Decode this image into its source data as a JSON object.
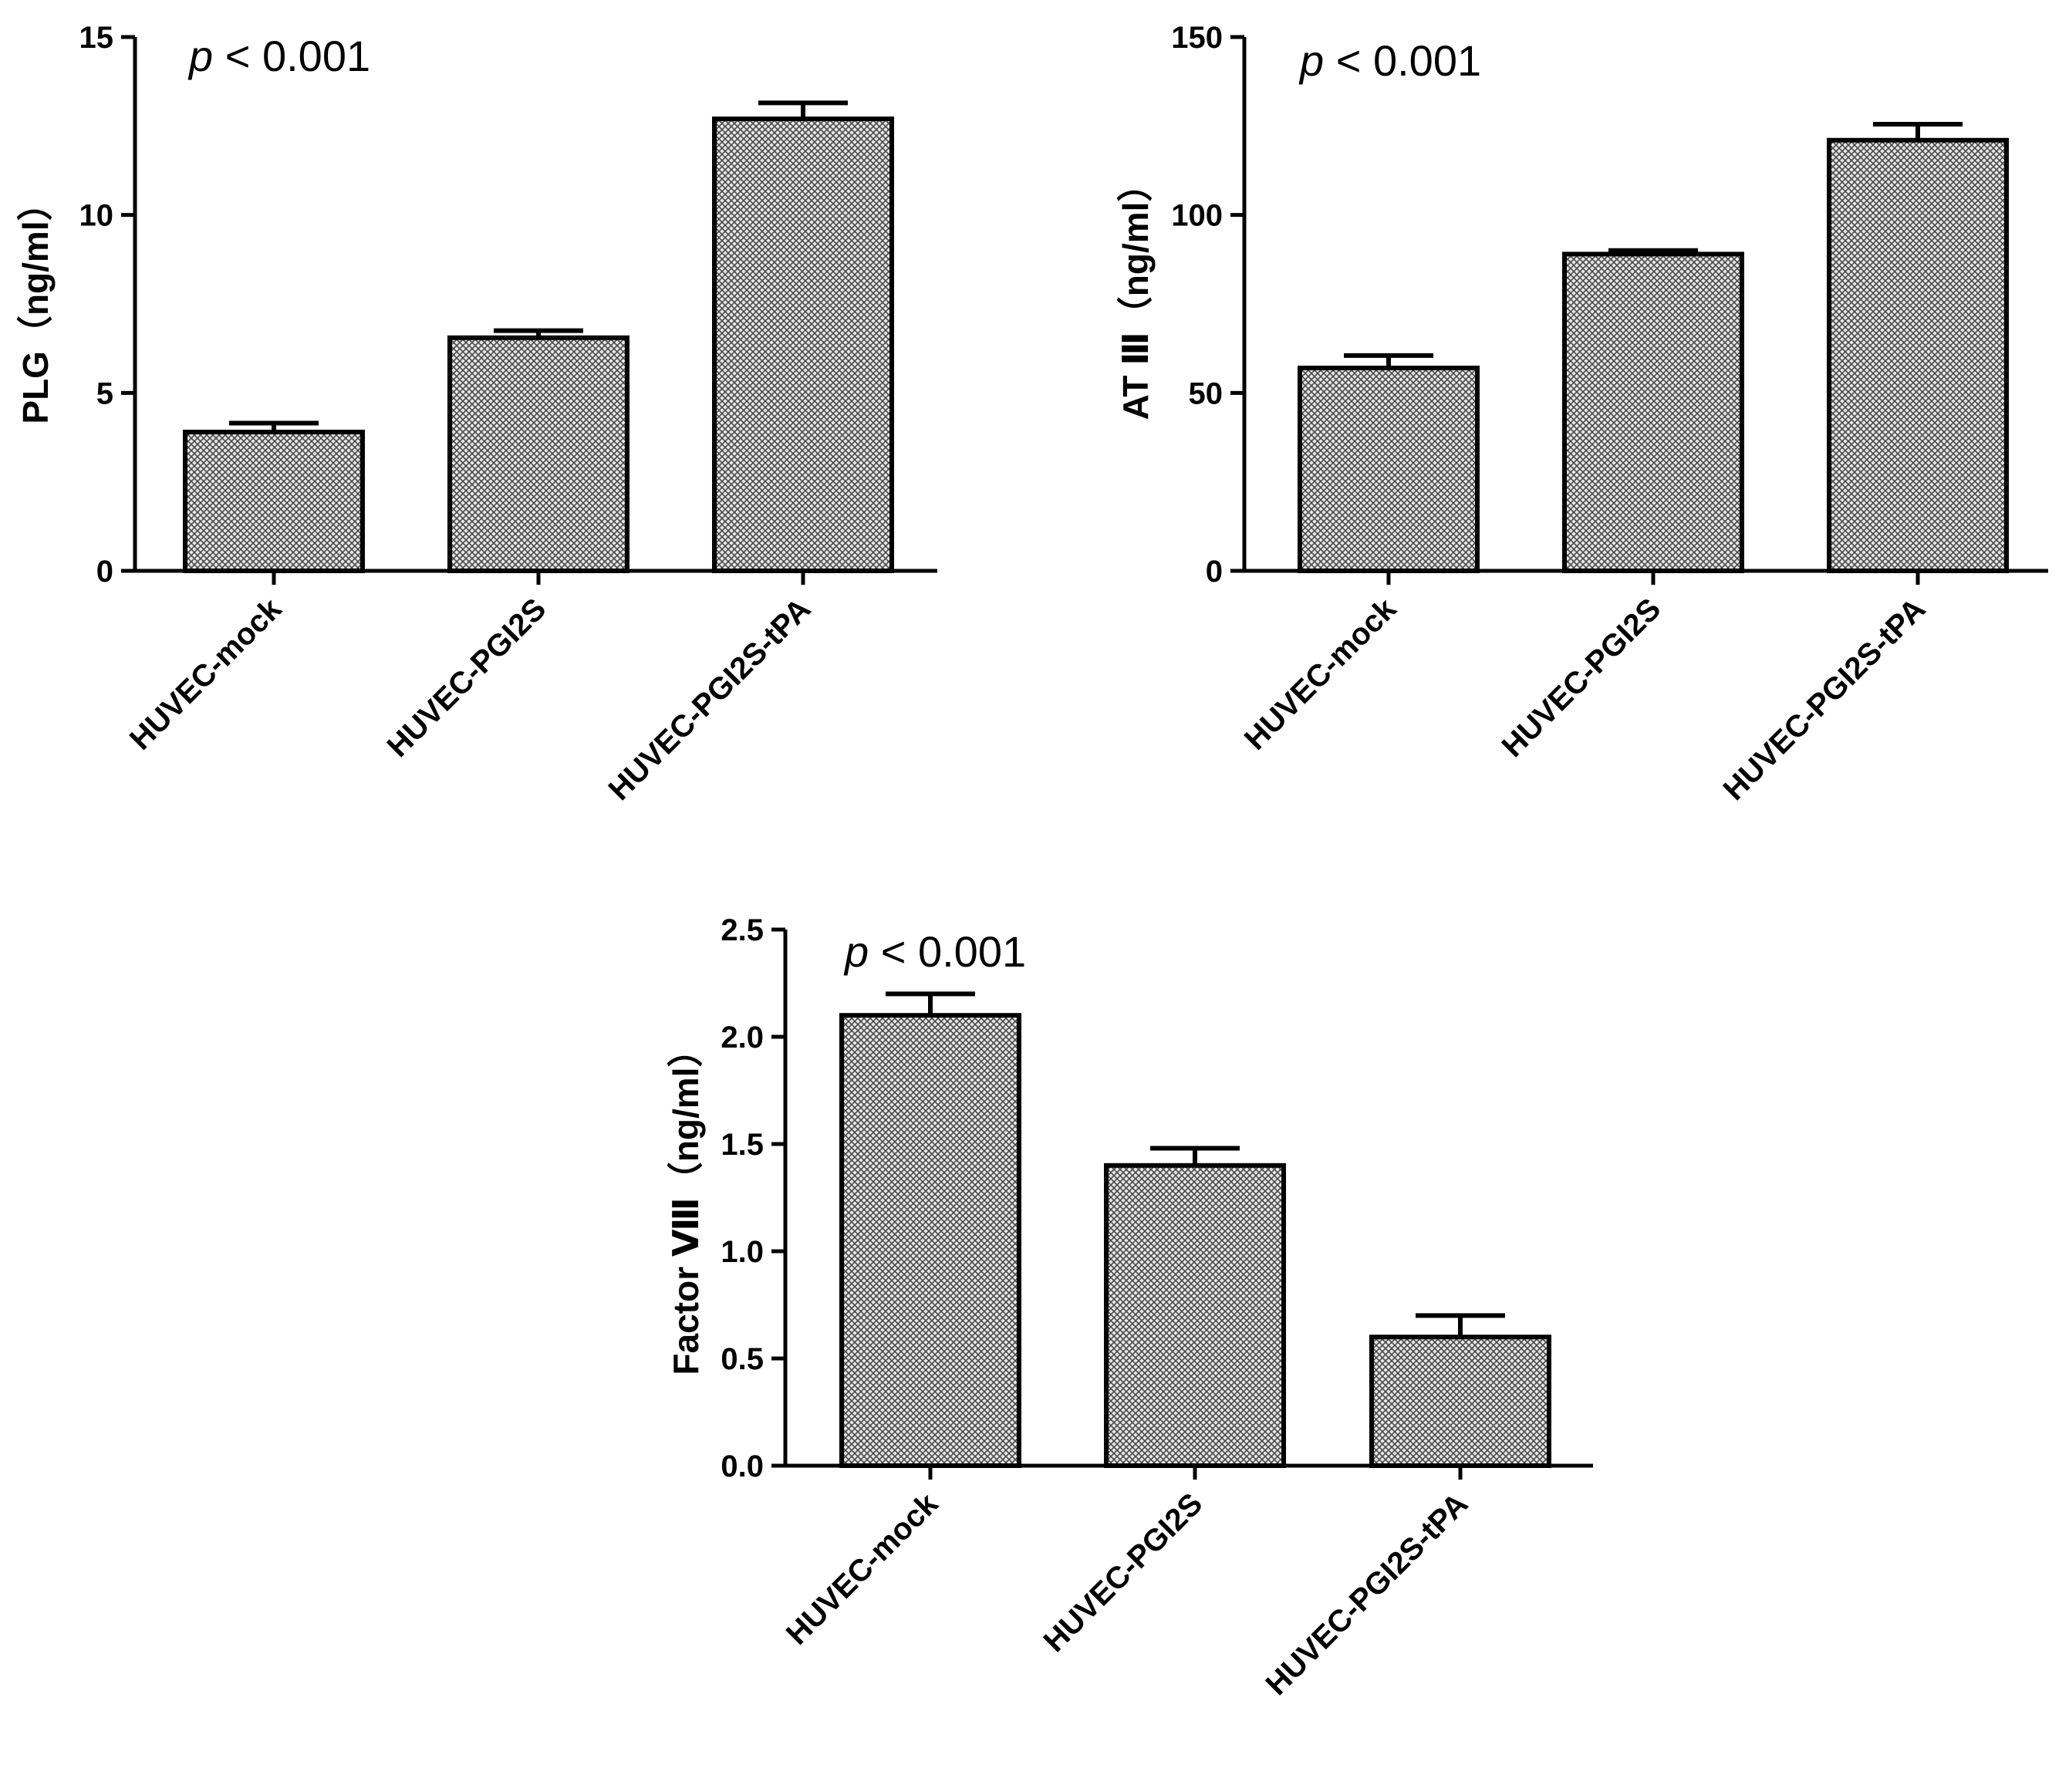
{
  "chart_data": [
    {
      "type": "bar",
      "categories": [
        "HUVEC-mock",
        "HUVEC-PGI2S",
        "HUVEC-PGI2S-tPA"
      ],
      "values": [
        3.9,
        6.55,
        12.7
      ],
      "errors": [
        0.25,
        0.2,
        0.45
      ],
      "ylabel": "PLG（ng/ml）",
      "ylim": [
        0,
        15
      ],
      "yticks": [
        "0",
        "5",
        "10",
        "15"
      ],
      "annotation": {
        "p": "p",
        "rest": " < 0.001"
      },
      "grid": false,
      "bar_fill": "crosshatch gray"
    },
    {
      "type": "bar",
      "categories": [
        "HUVEC-mock",
        "HUVEC-PGI2S",
        "HUVEC-PGI2S-tPA"
      ],
      "values": [
        57,
        89,
        121
      ],
      "errors": [
        3.5,
        1,
        4.5
      ],
      "ylabel": "AT Ⅲ（ng/ml）",
      "ylim": [
        0,
        150
      ],
      "yticks": [
        "0",
        "50",
        "100",
        "150"
      ],
      "annotation": {
        "p": "p",
        "rest": " < 0.001"
      },
      "grid": false,
      "bar_fill": "crosshatch gray"
    },
    {
      "type": "bar",
      "categories": [
        "HUVEC-mock",
        "HUVEC-PGI2S",
        "HUVEC-PGI2S-tPA"
      ],
      "values": [
        2.1,
        1.4,
        0.6
      ],
      "errors": [
        0.1,
        0.08,
        0.1
      ],
      "ylabel": "Factor Ⅷ（ng/ml）",
      "ylim": [
        0,
        2.5
      ],
      "yticks": [
        "0.0",
        "0.5",
        "1.0",
        "1.5",
        "2.0",
        "2.5"
      ],
      "annotation": {
        "p": "p",
        "rest": " < 0.001"
      },
      "grid": false,
      "bar_fill": "crosshatch gray"
    }
  ],
  "colors": {
    "bar_outline": "#000000",
    "hatch_light": "#e6e6e6",
    "hatch_dark": "#4a4a4a"
  }
}
